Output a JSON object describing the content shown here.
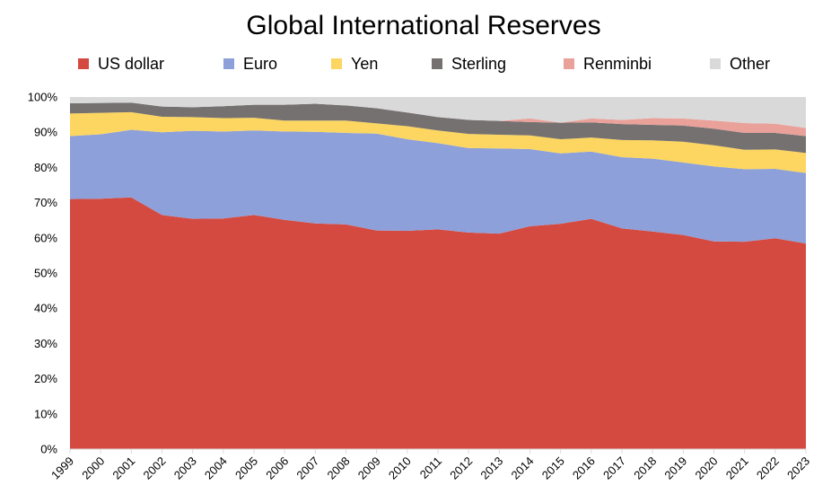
{
  "chart_data": {
    "type": "area",
    "stacked": true,
    "title": "Global International Reserves",
    "xlabel": "",
    "ylabel": "",
    "ylim": [
      0,
      100
    ],
    "y_ticks": [
      "0%",
      "10%",
      "20%",
      "30%",
      "40%",
      "50%",
      "60%",
      "70%",
      "80%",
      "90%",
      "100%"
    ],
    "legend_position": "top",
    "grid": false,
    "categories": [
      "1999",
      "2000",
      "2001",
      "2002",
      "2003",
      "2004",
      "2005",
      "2006",
      "2007",
      "2008",
      "2009",
      "2010",
      "2011",
      "2012",
      "2013",
      "2014",
      "2015",
      "2016",
      "2017",
      "2018",
      "2019",
      "2020",
      "2021",
      "2022",
      "2023"
    ],
    "series": [
      {
        "name": "US dollar",
        "color": "#d44a41",
        "values": [
          71.0,
          71.1,
          71.5,
          66.5,
          65.4,
          65.5,
          66.5,
          65.1,
          64.1,
          63.8,
          62.1,
          62.0,
          62.4,
          61.5,
          61.2,
          63.3,
          64.0,
          65.4,
          62.7,
          61.8,
          60.8,
          59.0,
          58.9,
          59.9,
          58.4
        ]
      },
      {
        "name": "Euro",
        "color": "#8da0d9",
        "values": [
          17.9,
          18.3,
          19.2,
          23.5,
          25.0,
          24.7,
          24.0,
          25.1,
          26.0,
          26.0,
          27.5,
          26.0,
          24.5,
          24.0,
          24.2,
          21.9,
          20.0,
          19.1,
          20.2,
          20.7,
          20.6,
          21.3,
          20.6,
          19.7,
          20.0
        ]
      },
      {
        "name": "Yen",
        "color": "#fcd660",
        "values": [
          6.4,
          6.1,
          5.0,
          4.4,
          3.9,
          3.8,
          3.6,
          3.1,
          3.2,
          3.5,
          2.9,
          3.7,
          3.6,
          4.0,
          3.9,
          3.9,
          4.0,
          4.0,
          4.9,
          5.2,
          5.9,
          6.0,
          5.5,
          5.5,
          5.7
        ]
      },
      {
        "name": "Sterling",
        "color": "#767171",
        "values": [
          2.9,
          2.8,
          2.7,
          2.9,
          2.8,
          3.4,
          3.7,
          4.5,
          4.8,
          4.3,
          4.3,
          3.9,
          3.8,
          4.0,
          3.9,
          3.8,
          4.7,
          4.3,
          4.5,
          4.4,
          4.6,
          4.7,
          4.8,
          4.7,
          4.8
        ]
      },
      {
        "name": "Renminbi",
        "color": "#e9a19a",
        "values": [
          0,
          0,
          0,
          0,
          0,
          0,
          0,
          0,
          0,
          0,
          0,
          0,
          0,
          0,
          0,
          1.0,
          0,
          1.1,
          1.2,
          1.9,
          2.0,
          2.3,
          2.8,
          2.6,
          2.3
        ]
      },
      {
        "name": "Other",
        "color": "#d9d9d9",
        "values": [
          1.8,
          1.7,
          1.6,
          2.7,
          2.9,
          2.6,
          2.2,
          2.2,
          1.9,
          2.4,
          3.2,
          4.4,
          5.7,
          6.5,
          6.8,
          6.1,
          7.3,
          6.1,
          6.5,
          6.0,
          6.1,
          6.7,
          7.4,
          7.6,
          8.8
        ]
      }
    ]
  }
}
